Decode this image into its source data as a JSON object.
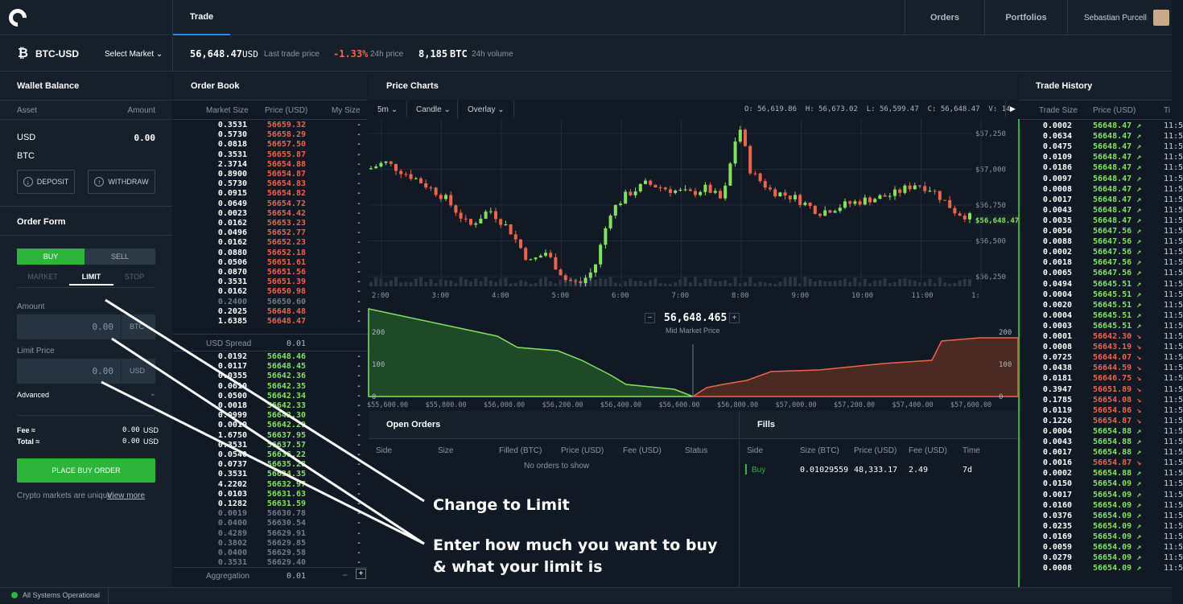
{
  "nav": {
    "trade": "Trade",
    "orders": "Orders",
    "portfolios": "Portfolios",
    "user": "Sebastian Purcell"
  },
  "market": {
    "pair": "BTC-USD",
    "select": "Select Market",
    "last_price": "56,648.47",
    "last_ccy": "USD",
    "last_label": "Last trade price",
    "change": "-1.33%",
    "change_label": "24h price",
    "volume": "8,185",
    "volume_ccy": "BTC",
    "volume_label": "24h volume"
  },
  "wallet": {
    "title": "Wallet Balance",
    "asset_h": "Asset",
    "amount_h": "Amount",
    "usd": "USD",
    "usd_amt": "0.00",
    "btc": "BTC",
    "deposit": "DEPOSIT",
    "withdraw": "WITHDRAW"
  },
  "order_form": {
    "title": "Order Form",
    "buy": "BUY",
    "sell": "SELL",
    "market": "MARKET",
    "limit": "LIMIT",
    "stop": "STOP",
    "amount_label": "Amount",
    "amount_value": "0.00",
    "amount_unit": "BTC",
    "limit_label": "Limit Price",
    "limit_value": "0.00",
    "limit_unit": "USD",
    "advanced": "Advanced",
    "fee_label": "Fee ≈",
    "fee_value": "0.00",
    "fee_unit": "USD",
    "total_label": "Total ≈",
    "total_value": "0.00",
    "total_unit": "USD",
    "place": "PLACE BUY ORDER",
    "note": "Crypto markets are unique.",
    "view_more": "View more"
  },
  "order_book": {
    "title": "Order Book",
    "col_size": "Market Size",
    "col_price": "Price (USD)",
    "col_my": "My Size",
    "spread_label": "USD Spread",
    "spread_value": "0.01",
    "aggregation_label": "Aggregation",
    "aggregation_value": "0.01",
    "asks": [
      [
        "0.3531",
        "56659.32"
      ],
      [
        "0.5730",
        "56658.29"
      ],
      [
        "0.0818",
        "56657.50"
      ],
      [
        "0.3531",
        "56655.87"
      ],
      [
        "2.3714",
        "56654.88"
      ],
      [
        "0.8900",
        "56654.87"
      ],
      [
        "0.5730",
        "56654.83"
      ],
      [
        "0.0915",
        "56654.82"
      ],
      [
        "0.0649",
        "56654.72"
      ],
      [
        "0.0023",
        "56654.42"
      ],
      [
        "0.0162",
        "56653.23"
      ],
      [
        "0.0496",
        "56652.77"
      ],
      [
        "0.0162",
        "56652.23"
      ],
      [
        "0.0880",
        "56652.18"
      ],
      [
        "0.0506",
        "56651.61"
      ],
      [
        "0.0870",
        "56651.56"
      ],
      [
        "0.3531",
        "56651.39"
      ],
      [
        "0.0162",
        "56650.98"
      ],
      [
        "0.2400",
        "56650.60"
      ],
      [
        "0.2025",
        "56648.48"
      ],
      [
        "1.6385",
        "56648.47"
      ]
    ],
    "bids": [
      [
        "0.0192",
        "56648.46"
      ],
      [
        "0.0117",
        "56648.45"
      ],
      [
        "0.0355",
        "56642.36"
      ],
      [
        "0.0610",
        "56642.35"
      ],
      [
        "0.0500",
        "56642.34"
      ],
      [
        "0.0018",
        "56642.33"
      ],
      [
        "0.0999",
        "56642.30"
      ],
      [
        "0.0010",
        "56642.29"
      ],
      [
        "1.6750",
        "56637.95"
      ],
      [
        "0.3531",
        "56637.57"
      ],
      [
        "0.0540",
        "56636.22"
      ],
      [
        "0.0737",
        "56635.28"
      ],
      [
        "0.3531",
        "56634.35"
      ],
      [
        "4.2202",
        "56632.97"
      ],
      [
        "0.0103",
        "56631.63"
      ],
      [
        "0.1282",
        "56631.59"
      ],
      [
        "0.0019",
        "56630.78"
      ],
      [
        "0.0400",
        "56630.54"
      ],
      [
        "0.4289",
        "56629.91"
      ],
      [
        "0.3802",
        "56629.85"
      ],
      [
        "0.0400",
        "56629.58"
      ],
      [
        "0.3531",
        "56629.40"
      ]
    ]
  },
  "charts": {
    "title": "Price Charts",
    "interval": "5m",
    "type": "Candle",
    "overlay": "Overlay",
    "ohlc": "O: 56,619.86  H: 56,673.02  L: 56,599.47  C: 56,648.47  V: 14",
    "time_labels": [
      "2:00",
      "3:00",
      "4:00",
      "5:00",
      "6:00",
      "7:00",
      "8:00",
      "9:00",
      "10:00",
      "11:00",
      "1:"
    ],
    "price_labels": [
      "$57,250",
      "$57,000",
      "$56,750",
      "$56,500",
      "$56,250"
    ],
    "current_price": "$56,648.47",
    "mid_price": "56,648.465",
    "mid_label": "Mid Market Price",
    "minus": "−",
    "plus": "+",
    "depth_y": [
      "200",
      "100",
      "0"
    ],
    "depth_y_right": [
      "200",
      "100",
      "0"
    ],
    "depth_x": [
      "$55,600.00",
      "$55,800.00",
      "$56,000.00",
      "$56,200.00",
      "$56,400.00",
      "$56,600.00",
      "$56,800.00",
      "$57,000.00",
      "$57,200.00",
      "$57,400.00",
      "$57,600.00"
    ]
  },
  "open_orders": {
    "title": "Open Orders",
    "cols": [
      "Side",
      "Size",
      "Filled (BTC)",
      "Price (USD)",
      "Fee (USD)",
      "Status"
    ],
    "empty": "No orders to show"
  },
  "fills": {
    "title": "Fills",
    "cols": [
      "Side",
      "Size (BTC)",
      "Price (USD)",
      "Fee (USD)",
      "Time"
    ],
    "row": [
      "Buy",
      "0.01029559",
      "48,333.17",
      "2.49",
      "7d"
    ]
  },
  "trade_history": {
    "title": "Trade History",
    "col_size": "Trade Size",
    "col_price": "Price (USD)",
    "col_time": "Ti",
    "rows": [
      [
        "0.0002",
        "56648.47",
        "up"
      ],
      [
        "0.0634",
        "56648.47",
        "up"
      ],
      [
        "0.0475",
        "56648.47",
        "up"
      ],
      [
        "0.0109",
        "56648.47",
        "up"
      ],
      [
        "0.0186",
        "56648.47",
        "up"
      ],
      [
        "0.0097",
        "56648.47",
        "up"
      ],
      [
        "0.0008",
        "56648.47",
        "up"
      ],
      [
        "0.0017",
        "56648.47",
        "up"
      ],
      [
        "0.0043",
        "56648.47",
        "up"
      ],
      [
        "0.0035",
        "56648.47",
        "up"
      ],
      [
        "0.0056",
        "56647.56",
        "up"
      ],
      [
        "0.0088",
        "56647.56",
        "up"
      ],
      [
        "0.0002",
        "56647.56",
        "up"
      ],
      [
        "0.0018",
        "56647.56",
        "up"
      ],
      [
        "0.0065",
        "56647.56",
        "up"
      ],
      [
        "0.0494",
        "56645.51",
        "up"
      ],
      [
        "0.0004",
        "56645.51",
        "up"
      ],
      [
        "0.0020",
        "56645.51",
        "up"
      ],
      [
        "0.0004",
        "56645.51",
        "up"
      ],
      [
        "0.0003",
        "56645.51",
        "up"
      ],
      [
        "0.0001",
        "56642.30",
        "down"
      ],
      [
        "0.0008",
        "56643.19",
        "down"
      ],
      [
        "0.0725",
        "56644.07",
        "down"
      ],
      [
        "0.0438",
        "56644.59",
        "down"
      ],
      [
        "0.0181",
        "56646.75",
        "down"
      ],
      [
        "0.3947",
        "56651.89",
        "down"
      ],
      [
        "0.1785",
        "56654.08",
        "down"
      ],
      [
        "0.0119",
        "56654.86",
        "down"
      ],
      [
        "0.1226",
        "56654.87",
        "down"
      ],
      [
        "0.0004",
        "56654.88",
        "up"
      ],
      [
        "0.0043",
        "56654.88",
        "up"
      ],
      [
        "0.0017",
        "56654.88",
        "up"
      ],
      [
        "0.0016",
        "56654.87",
        "down"
      ],
      [
        "0.0002",
        "56654.88",
        "up"
      ],
      [
        "0.0150",
        "56654.09",
        "up"
      ],
      [
        "0.0017",
        "56654.09",
        "up"
      ],
      [
        "0.0160",
        "56654.09",
        "up"
      ],
      [
        "0.0376",
        "56654.09",
        "up"
      ],
      [
        "0.0235",
        "56654.09",
        "up"
      ],
      [
        "0.0169",
        "56654.09",
        "up"
      ],
      [
        "0.0059",
        "56654.09",
        "up"
      ],
      [
        "0.0279",
        "56654.09",
        "up"
      ],
      [
        "0.0008",
        "56654.09",
        "up"
      ]
    ],
    "time": "11:5"
  },
  "status": {
    "text": "All Systems Operational"
  },
  "annotations": {
    "a1": "Change to Limit",
    "a2": "Enter how much you want to buy",
    "a3": "& what your limit is"
  },
  "colors": {
    "ask": "#f0634b",
    "bid": "#83e25c",
    "buy": "#2db43b",
    "accent": "#2f8ae5"
  }
}
